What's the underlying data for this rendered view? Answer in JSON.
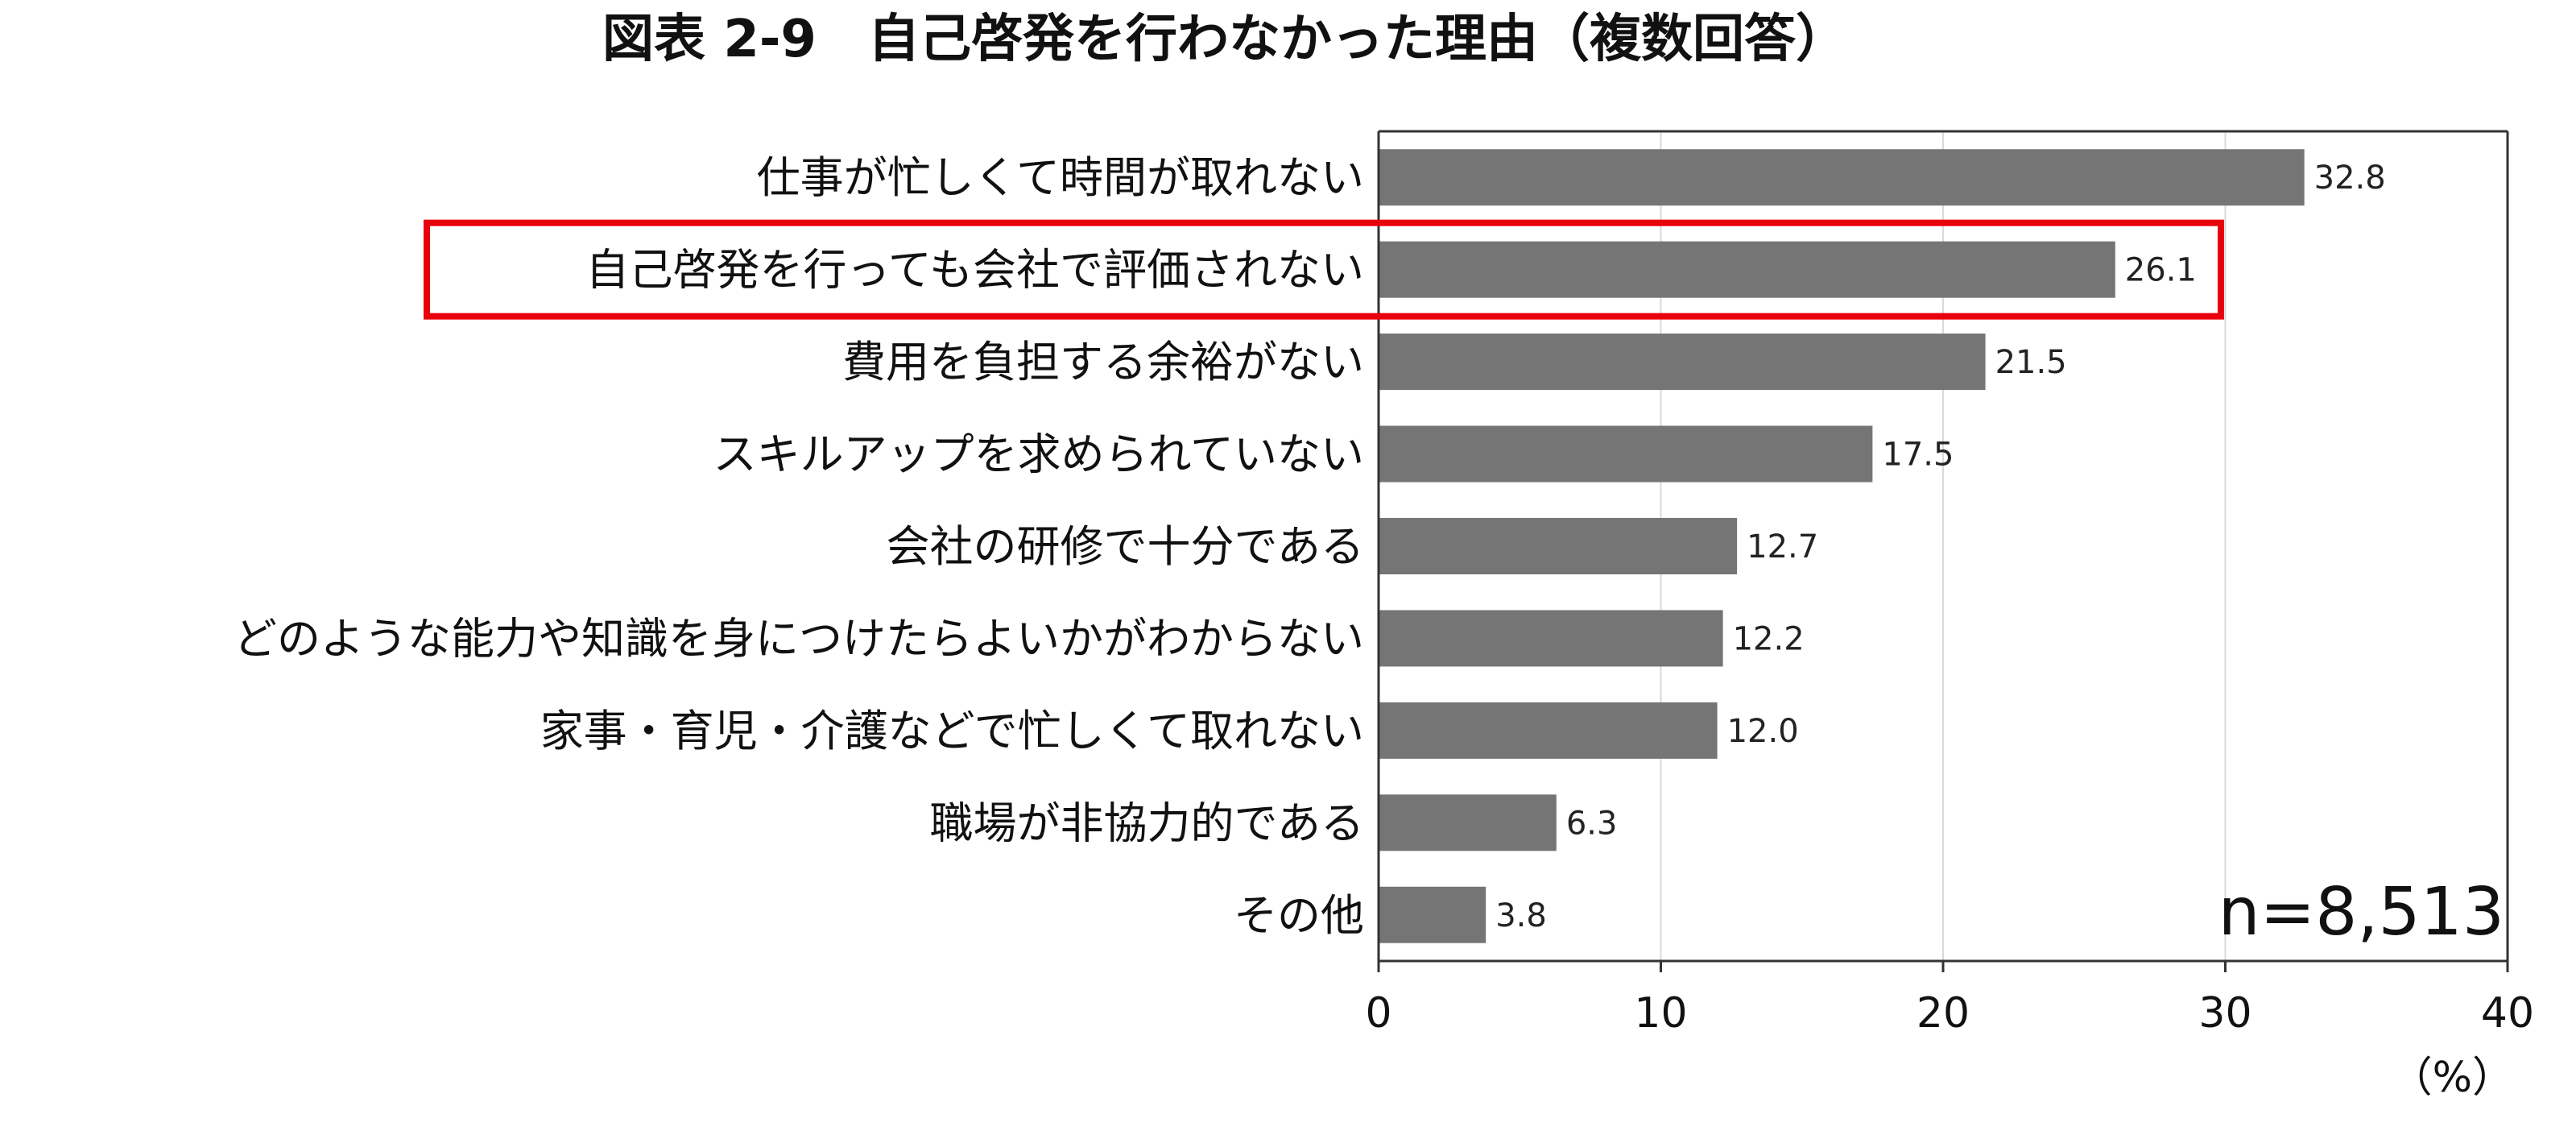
{
  "chart_data": {
    "type": "bar",
    "orientation": "horizontal",
    "title": "図表 2-9　自己啓発を行わなかった理由（複数回答）",
    "categories": [
      "仕事が忙しくて時間が取れない",
      "自己啓発を行っても会社で評価されない",
      "費用を負担する余裕がない",
      "スキルアップを求められていない",
      "会社の研修で十分である",
      "どのような能力や知識を身につけたらよいかがわからない",
      "家事・育児・介護などで忙しくて取れない",
      "職場が非協力的である",
      "その他"
    ],
    "values": [
      32.8,
      26.1,
      21.5,
      17.5,
      12.7,
      12.2,
      12.0,
      6.3,
      3.8
    ],
    "value_labels": [
      "32.8",
      "26.1",
      "21.5",
      "17.5",
      "12.7",
      "12.2",
      "12.0",
      "6.3",
      "3.8"
    ],
    "xlim": [
      0,
      40
    ],
    "xticks": [
      "0",
      "10",
      "20",
      "30",
      "40"
    ],
    "xunit": "（%）",
    "annotation": "n=8,513",
    "highlighted_category_index": 1,
    "grid": "vertical",
    "colors": {
      "bar": "#757575",
      "highlight_box": "#e8000b",
      "grid": "#d9d9d9",
      "axis": "#333333"
    }
  }
}
